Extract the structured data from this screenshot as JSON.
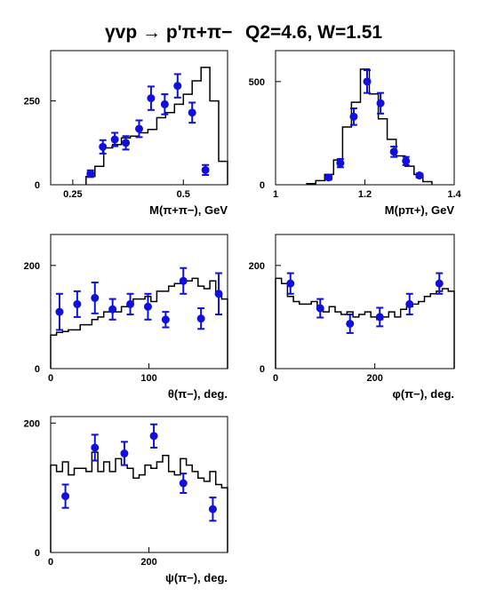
{
  "title": {
    "reaction": "γvp → p'π+π−",
    "kin": "Q2=4.6, W=1.51"
  },
  "chart_data": [
    {
      "type": "histogram+points",
      "xlabel": "M(π+π−), GeV",
      "xlim": [
        0.2,
        0.6
      ],
      "ylim": [
        0,
        400
      ],
      "xticks": [
        {
          "v": 0.25,
          "t": "0.25"
        },
        {
          "v": 0.5,
          "t": "0.5"
        }
      ],
      "yticks": [
        {
          "v": 0,
          "t": "0"
        },
        {
          "v": 250,
          "t": "250"
        }
      ],
      "hist_edges": [
        0.28,
        0.3,
        0.32,
        0.34,
        0.36,
        0.38,
        0.4,
        0.42,
        0.44,
        0.46,
        0.48,
        0.5,
        0.52,
        0.54,
        0.56,
        0.58,
        0.6
      ],
      "hist_values": [
        25,
        55,
        110,
        120,
        140,
        145,
        155,
        165,
        200,
        215,
        240,
        270,
        310,
        350,
        250,
        70
      ],
      "points": [
        {
          "x": 0.29,
          "y": 33,
          "err": 10
        },
        {
          "x": 0.318,
          "y": 113,
          "err": 20
        },
        {
          "x": 0.345,
          "y": 135,
          "err": 20
        },
        {
          "x": 0.37,
          "y": 125,
          "err": 20
        },
        {
          "x": 0.4,
          "y": 167,
          "err": 25
        },
        {
          "x": 0.427,
          "y": 258,
          "err": 35
        },
        {
          "x": 0.458,
          "y": 240,
          "err": 30
        },
        {
          "x": 0.487,
          "y": 295,
          "err": 35
        },
        {
          "x": 0.52,
          "y": 215,
          "err": 30
        },
        {
          "x": 0.55,
          "y": 44,
          "err": 15
        }
      ]
    },
    {
      "type": "histogram+points",
      "xlabel": "M(pπ+), GeV",
      "xlim": [
        1.0,
        1.4
      ],
      "ylim": [
        0,
        650
      ],
      "xticks": [
        {
          "v": 1.0,
          "t": "1"
        },
        {
          "v": 1.2,
          "t": "1.2"
        },
        {
          "v": 1.4,
          "t": "1.4"
        }
      ],
      "yticks": [
        {
          "v": 0,
          "t": "0"
        },
        {
          "v": 500,
          "t": "500"
        }
      ],
      "hist_edges": [
        1.07,
        1.09,
        1.11,
        1.13,
        1.15,
        1.17,
        1.19,
        1.21,
        1.23,
        1.25,
        1.27,
        1.29,
        1.31,
        1.33,
        1.35
      ],
      "hist_values": [
        5,
        20,
        50,
        120,
        280,
        400,
        560,
        440,
        320,
        220,
        140,
        90,
        50,
        15
      ],
      "points": [
        {
          "x": 1.119,
          "y": 35,
          "err": 10
        },
        {
          "x": 1.145,
          "y": 105,
          "err": 20
        },
        {
          "x": 1.175,
          "y": 330,
          "err": 40
        },
        {
          "x": 1.205,
          "y": 500,
          "err": 55
        },
        {
          "x": 1.235,
          "y": 395,
          "err": 50
        },
        {
          "x": 1.265,
          "y": 160,
          "err": 25
        },
        {
          "x": 1.292,
          "y": 115,
          "err": 20
        },
        {
          "x": 1.322,
          "y": 45,
          "err": 10
        }
      ]
    },
    {
      "type": "histogram+points",
      "xlabel": "θ(π−), deg.",
      "xlim": [
        0,
        180
      ],
      "ylim": [
        0,
        260
      ],
      "xticks": [
        {
          "v": 0,
          "t": "0"
        },
        {
          "v": 100,
          "t": "100"
        }
      ],
      "yticks": [
        {
          "v": 0,
          "t": "0"
        },
        {
          "v": 200,
          "t": "200"
        }
      ],
      "hist_edges": [
        0,
        6,
        12,
        18,
        24,
        30,
        36,
        42,
        48,
        54,
        60,
        66,
        72,
        78,
        84,
        90,
        96,
        102,
        108,
        114,
        120,
        126,
        132,
        138,
        144,
        150,
        156,
        162,
        168,
        174,
        180
      ],
      "hist_values": [
        65,
        70,
        72,
        75,
        75,
        85,
        85,
        95,
        100,
        110,
        115,
        110,
        120,
        125,
        135,
        135,
        140,
        130,
        150,
        150,
        160,
        165,
        170,
        170,
        175,
        160,
        155,
        170,
        145,
        135
      ],
      "points": [
        {
          "x": 9,
          "y": 110,
          "err": 35
        },
        {
          "x": 27,
          "y": 125,
          "err": 25
        },
        {
          "x": 45,
          "y": 137,
          "err": 30
        },
        {
          "x": 63,
          "y": 115,
          "err": 20
        },
        {
          "x": 81,
          "y": 125,
          "err": 20
        },
        {
          "x": 99,
          "y": 120,
          "err": 25
        },
        {
          "x": 117,
          "y": 95,
          "err": 15
        },
        {
          "x": 135,
          "y": 170,
          "err": 25
        },
        {
          "x": 153,
          "y": 97,
          "err": 20
        },
        {
          "x": 171,
          "y": 145,
          "err": 40
        }
      ]
    },
    {
      "type": "histogram+points",
      "xlabel": "φ(π−), deg.",
      "xlim": [
        0,
        360
      ],
      "ylim": [
        0,
        260
      ],
      "xticks": [
        {
          "v": 0,
          "t": "0"
        },
        {
          "v": 200,
          "t": "200"
        }
      ],
      "yticks": [
        {
          "v": 0,
          "t": "0"
        },
        {
          "v": 200,
          "t": "200"
        }
      ],
      "hist_edges": [
        0,
        12,
        24,
        36,
        48,
        60,
        72,
        84,
        96,
        108,
        120,
        132,
        144,
        156,
        168,
        180,
        192,
        204,
        216,
        228,
        240,
        252,
        264,
        276,
        288,
        300,
        312,
        324,
        336,
        348,
        360
      ],
      "hist_values": [
        175,
        165,
        140,
        130,
        125,
        125,
        130,
        115,
        110,
        120,
        110,
        105,
        110,
        100,
        105,
        110,
        100,
        95,
        100,
        110,
        100,
        115,
        120,
        125,
        130,
        140,
        145,
        150,
        155,
        150
      ],
      "points": [
        {
          "x": 30,
          "y": 165,
          "err": 20
        },
        {
          "x": 90,
          "y": 117,
          "err": 18
        },
        {
          "x": 150,
          "y": 87,
          "err": 18
        },
        {
          "x": 210,
          "y": 100,
          "err": 18
        },
        {
          "x": 270,
          "y": 125,
          "err": 20
        },
        {
          "x": 330,
          "y": 165,
          "err": 20
        }
      ]
    },
    {
      "type": "histogram+points",
      "xlabel": "ψ(π−), deg.",
      "xlim": [
        0,
        360
      ],
      "ylim": [
        0,
        210
      ],
      "xticks": [
        {
          "v": 0,
          "t": "0"
        },
        {
          "v": 200,
          "t": "200"
        }
      ],
      "yticks": [
        {
          "v": 0,
          "t": "0"
        },
        {
          "v": 200,
          "t": "200"
        }
      ],
      "hist_edges": [
        0,
        12,
        24,
        36,
        48,
        60,
        72,
        84,
        96,
        108,
        120,
        132,
        144,
        156,
        168,
        180,
        192,
        204,
        216,
        228,
        240,
        252,
        264,
        276,
        288,
        300,
        312,
        324,
        336,
        348,
        360
      ],
      "hist_values": [
        135,
        125,
        140,
        120,
        130,
        130,
        125,
        155,
        125,
        140,
        125,
        145,
        135,
        130,
        115,
        120,
        135,
        130,
        140,
        150,
        125,
        120,
        145,
        135,
        125,
        115,
        110,
        125,
        105,
        100
      ],
      "points": [
        {
          "x": 30,
          "y": 87,
          "err": 18
        },
        {
          "x": 90,
          "y": 162,
          "err": 20
        },
        {
          "x": 150,
          "y": 153,
          "err": 18
        },
        {
          "x": 210,
          "y": 180,
          "err": 18
        },
        {
          "x": 270,
          "y": 107,
          "err": 15
        },
        {
          "x": 330,
          "y": 67,
          "err": 18
        }
      ]
    }
  ]
}
